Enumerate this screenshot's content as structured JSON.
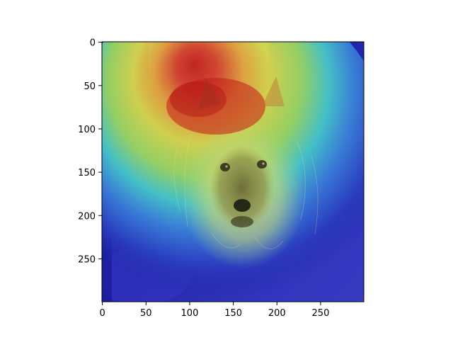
{
  "figure": {
    "description_free": true,
    "x_axis": {
      "ticks": [
        0,
        50,
        100,
        150,
        200,
        250
      ],
      "range": [
        0,
        299
      ]
    },
    "y_axis": {
      "ticks": [
        0,
        50,
        100,
        150,
        200,
        250
      ],
      "range": [
        0,
        299
      ],
      "inverted": true
    },
    "overlay": {
      "colormap": "jet",
      "colors": {
        "low": "#1a1aa8",
        "mid": "#39d4e0",
        "high": "#d92a1f"
      }
    }
  }
}
